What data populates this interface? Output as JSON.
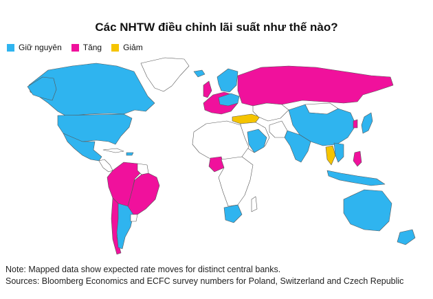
{
  "title": "Các NHTW điều chỉnh lãi suất như thế nào?",
  "legend": [
    {
      "label": "Giữ nguyên",
      "color": "#2fb4ef"
    },
    {
      "label": "Tăng",
      "color": "#f0119c"
    },
    {
      "label": "Giảm",
      "color": "#f5c400"
    }
  ],
  "colors": {
    "hold": "#2fb4ef",
    "hike": "#f0119c",
    "cut": "#f5c400",
    "none": "#ffffff",
    "border": "#555555"
  },
  "footer": {
    "note": "Note: Mapped data show expected rate moves for distinct central banks.",
    "sources": "Sources: Bloomberg Economics and ECFC survey numbers for Poland, Switzerland and Czech Republic"
  }
}
